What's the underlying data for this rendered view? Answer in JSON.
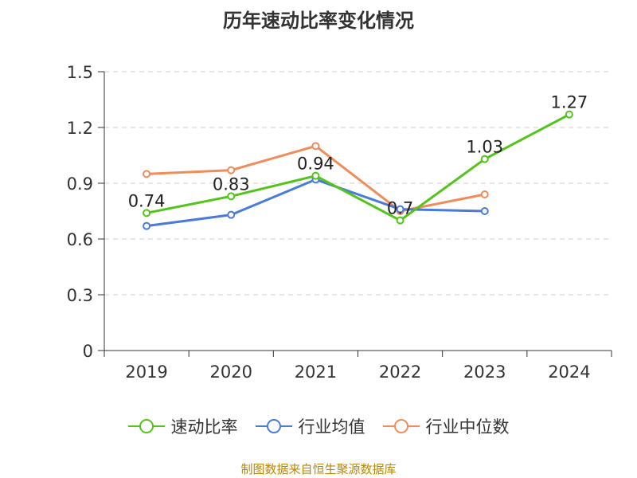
{
  "chart_data": {
    "type": "line",
    "title": "历年速动比率变化情况",
    "categories": [
      "2019",
      "2020",
      "2021",
      "2022",
      "2023",
      "2024"
    ],
    "ylim": [
      0,
      1.5
    ],
    "yticks": [
      "0",
      "0.3",
      "0.6",
      "0.9",
      "1.2",
      "1.5"
    ],
    "ytick_values": [
      0,
      0.3,
      0.6,
      0.9,
      1.2,
      1.5
    ],
    "grid": true,
    "legend_position": "bottom",
    "series": [
      {
        "name": "速动比率",
        "color": "#52c41a",
        "values": [
          0.74,
          0.83,
          0.94,
          0.7,
          1.03,
          1.27
        ],
        "labels": [
          "0.74",
          "0.83",
          "0.94",
          "0.7",
          "1.03",
          "1.27"
        ],
        "show_labels": true
      },
      {
        "name": "行业均值",
        "color": "#4a7bd9",
        "values": [
          0.67,
          0.73,
          0.92,
          0.76,
          0.75,
          null
        ],
        "show_labels": false
      },
      {
        "name": "行业中位数",
        "color": "#f08c5a",
        "values": [
          0.95,
          0.97,
          1.1,
          0.75,
          0.84,
          null
        ],
        "show_labels": false
      }
    ]
  },
  "legend": [
    "速动比率",
    "行业均值",
    "行业中位数"
  ],
  "source": "制图数据来自恒生聚源数据库"
}
